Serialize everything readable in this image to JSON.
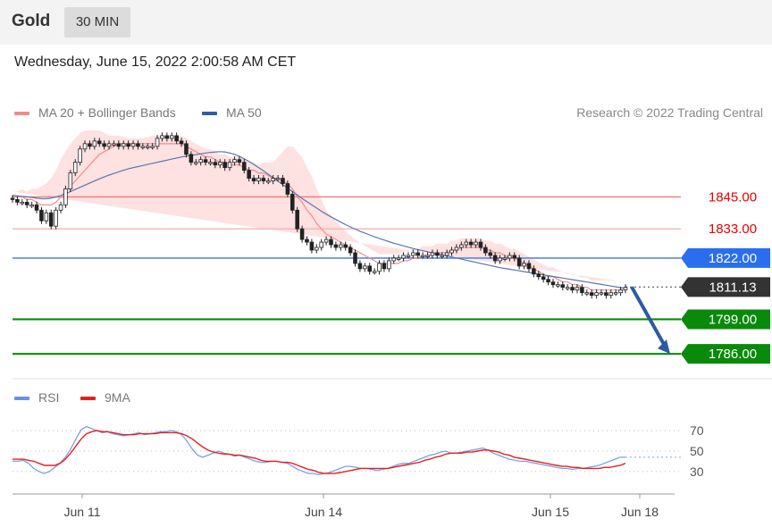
{
  "header": {
    "asset": "Gold",
    "timeframe": "30 MIN",
    "datetime": "Wednesday, June 15, 2022 2:00:58 AM CET"
  },
  "legend": {
    "ma20": {
      "label": "MA 20 + Bollinger Bands",
      "color": "#f28b8b"
    },
    "ma50": {
      "label": "MA 50",
      "color": "#2e5e9e"
    },
    "copyright": "Research © 2022 Trading Central"
  },
  "rsi_legend": {
    "rsi": {
      "label": "RSI",
      "color": "#6c8fe0"
    },
    "ma9": {
      "label": "9MA",
      "color": "#e62020"
    }
  },
  "chart_data": [
    {
      "type": "candlestick",
      "ylim": [
        1778,
        1872
      ],
      "levels": [
        {
          "value": 1845.0,
          "label": "1845.00",
          "line_color": "#f07a7a",
          "tag_bg": "#ffffff",
          "tag_fg": "#e60000"
        },
        {
          "value": 1833.0,
          "label": "1833.00",
          "line_color": "#f5b3b3",
          "tag_bg": "#ffffff",
          "tag_fg": "#e60000"
        },
        {
          "value": 1822.0,
          "label": "1822.00",
          "line_color": "#5a86e8",
          "tag_bg": "#2a6ef0",
          "tag_fg": "#ffffff"
        },
        {
          "value": 1811.13,
          "label": "1811.13",
          "line_color": "#555555",
          "tag_bg": "#333333",
          "tag_fg": "#ffffff"
        },
        {
          "value": 1799.0,
          "label": "1799.00",
          "line_color": "#0a8a0a",
          "tag_bg": "#0a8a0a",
          "tag_fg": "#ffffff"
        },
        {
          "value": 1786.0,
          "label": "1786.00",
          "line_color": "#0a8a0a",
          "tag_bg": "#0a8a0a",
          "tag_fg": "#ffffff"
        }
      ],
      "close": [
        1844,
        1843,
        1843,
        1842,
        1842,
        1840,
        1836,
        1839,
        1834,
        1840,
        1842,
        1848,
        1854,
        1858,
        1863,
        1865,
        1864,
        1866,
        1865,
        1864,
        1865,
        1865,
        1864,
        1865,
        1864,
        1865,
        1864,
        1864,
        1864,
        1864,
        1867,
        1868,
        1867,
        1868,
        1866,
        1865,
        1861,
        1858,
        1858,
        1859,
        1858,
        1858,
        1857,
        1858,
        1856,
        1858,
        1859,
        1858,
        1855,
        1852,
        1851,
        1852,
        1851,
        1851,
        1852,
        1852,
        1850,
        1846,
        1840,
        1833,
        1829,
        1828,
        1825,
        1826,
        1828,
        1829,
        1827,
        1826,
        1827,
        1826,
        1824,
        1820,
        1818,
        1819,
        1817,
        1817,
        1820,
        1818,
        1821,
        1822,
        1822,
        1823,
        1823,
        1824,
        1823,
        1823,
        1823,
        1824,
        1823,
        1823,
        1824,
        1825,
        1826,
        1827,
        1828,
        1827,
        1828,
        1826,
        1824,
        1823,
        1821,
        1822,
        1822,
        1823,
        1822,
        1819,
        1820,
        1818,
        1816,
        1815,
        1814,
        1813,
        1812,
        1812,
        1811,
        1811,
        1810,
        1811,
        1809,
        1809,
        1808,
        1809,
        1809,
        1808,
        1809,
        1809,
        1810,
        1811
      ],
      "ma20": [
        1845,
        1845,
        1845,
        1844,
        1844,
        1843,
        1842,
        1842,
        1842,
        1843,
        1845,
        1847,
        1849,
        1851,
        1853,
        1855,
        1857,
        1859,
        1861,
        1862,
        1863,
        1864,
        1865,
        1865,
        1865,
        1865,
        1865,
        1865,
        1865,
        1865,
        1865,
        1865,
        1865,
        1865,
        1865,
        1865,
        1864,
        1863,
        1862,
        1861,
        1860,
        1860,
        1859,
        1858,
        1858,
        1857,
        1857,
        1857,
        1856,
        1855,
        1855,
        1854,
        1854,
        1853,
        1852,
        1852,
        1851,
        1850,
        1848,
        1845,
        1843,
        1840,
        1838,
        1835,
        1833,
        1831,
        1830,
        1829,
        1828,
        1827,
        1826,
        1825,
        1824,
        1823,
        1822,
        1821,
        1820,
        1820,
        1820,
        1820,
        1820,
        1821,
        1821,
        1822,
        1822,
        1823,
        1823,
        1823,
        1824,
        1824,
        1824,
        1825,
        1825,
        1826,
        1826,
        1826,
        1826,
        1826,
        1825,
        1825,
        1824,
        1824,
        1823,
        1822,
        1822,
        1821,
        1820,
        1819,
        1818,
        1817,
        1816,
        1815,
        1815,
        1814,
        1813,
        1813,
        1812,
        1812,
        1811,
        1811,
        1810,
        1810,
        1810,
        1810,
        1810,
        1810,
        1810,
        1810
      ],
      "ma50": [
        1845.5,
        1845.4,
        1845.2,
        1845,
        1844.8,
        1844.5,
        1844.3,
        1844.3,
        1844.5,
        1845,
        1845.5,
        1846.2,
        1847,
        1847.8,
        1848.6,
        1849.4,
        1850.2,
        1851,
        1851.8,
        1852.5,
        1853.2,
        1853.8,
        1854.4,
        1855,
        1855.5,
        1856,
        1856.4,
        1856.8,
        1857.2,
        1857.6,
        1858,
        1858.4,
        1858.8,
        1859.2,
        1859.6,
        1860,
        1860.3,
        1860.6,
        1860.9,
        1861.2,
        1861.5,
        1861.7,
        1861.9,
        1862,
        1861.9,
        1861.5,
        1861,
        1860.2,
        1859.3,
        1858.3,
        1857.2,
        1856,
        1854.8,
        1853.5,
        1852.2,
        1850.9,
        1849.6,
        1848.3,
        1847,
        1845.7,
        1844.4,
        1843.2,
        1842,
        1840.8,
        1839.6,
        1838.5,
        1837.5,
        1836.5,
        1835.5,
        1834.6,
        1833.7,
        1832.9,
        1832.1,
        1831.4,
        1830.7,
        1830,
        1829.4,
        1828.8,
        1828.2,
        1827.6,
        1827.1,
        1826.6,
        1826.1,
        1825.6,
        1825.2,
        1824.8,
        1824.4,
        1824,
        1823.6,
        1823.2,
        1822.8,
        1822.4,
        1822,
        1821.6,
        1821.2,
        1820.8,
        1820.4,
        1820,
        1819.6,
        1819.2,
        1818.8,
        1818.4,
        1818.1,
        1817.8,
        1817.5,
        1817.2,
        1816.9,
        1816.6,
        1816.3,
        1816,
        1815.7,
        1815.4,
        1815.1,
        1814.8,
        1814.5,
        1814.2,
        1813.9,
        1813.6,
        1813.3,
        1813,
        1812.7,
        1812.4,
        1812.1,
        1811.8,
        1811.5,
        1811.2,
        1810.9,
        1810.6
      ],
      "bb_width": [
        2,
        2,
        3,
        3,
        4,
        5,
        7,
        8,
        10,
        12,
        14,
        15,
        16,
        16,
        16,
        15,
        13,
        11,
        9,
        7,
        5,
        4,
        3,
        2.5,
        2,
        2,
        2,
        2,
        2.5,
        3,
        3,
        3,
        3,
        3,
        3,
        3,
        3,
        3,
        3,
        3,
        3,
        3,
        3,
        3,
        3,
        3,
        3,
        3,
        3,
        3,
        3,
        3,
        4,
        5,
        6,
        8,
        11,
        14,
        16,
        17,
        17,
        16,
        15,
        13,
        11,
        9,
        8,
        7,
        6,
        5,
        4.5,
        4,
        3.8,
        3.5,
        3.5,
        3.5,
        3.5,
        3.5,
        3.5,
        3.5,
        3.5,
        3.5,
        3.5,
        3.5,
        3.5,
        3.5,
        3.5,
        3.5,
        3.5,
        3.5,
        3.5,
        3.5,
        3.5,
        3.5,
        3.5,
        3.5,
        3.5,
        3.5,
        3.5,
        3.5,
        3.5,
        3.5,
        3.5,
        3.5,
        3.5,
        3.5,
        3.5,
        3.5,
        3.5,
        3.5,
        3.5,
        3.5,
        3.5,
        3.5,
        3.5,
        3.5,
        3.5,
        3.5,
        3.5,
        3.5,
        3.5,
        3.5,
        3.5,
        3.5,
        3.5,
        3.5
      ],
      "forecast_arrow": {
        "from": 1811.13,
        "to": 1786.0,
        "color": "#2c5aa0"
      },
      "x_ticks": [
        "Jun 11",
        "Jun 14",
        "Jun 15",
        "Jun 18"
      ]
    },
    {
      "type": "line",
      "ylim": [
        15,
        85
      ],
      "y_ticks": [
        70,
        50,
        30
      ],
      "rsi": [
        40,
        40,
        41,
        38,
        33,
        30,
        28,
        30,
        34,
        38,
        44,
        52,
        62,
        71,
        74,
        72,
        70,
        68,
        69,
        67,
        66,
        65,
        66,
        67,
        68,
        66,
        67,
        68,
        69,
        69,
        70,
        69,
        66,
        60,
        52,
        46,
        44,
        46,
        48,
        50,
        48,
        47,
        45,
        46,
        44,
        42,
        40,
        39,
        39,
        40,
        40,
        39,
        38,
        35,
        32,
        30,
        28,
        28,
        27,
        28,
        29,
        31,
        33,
        35,
        35,
        34,
        33,
        33,
        32,
        31,
        32,
        33,
        35,
        37,
        38,
        38,
        40,
        42,
        44,
        46,
        47,
        49,
        50,
        48,
        48,
        49,
        50,
        51,
        52,
        53,
        51,
        48,
        46,
        44,
        42,
        41,
        40,
        40,
        39,
        38,
        37,
        36,
        35,
        34,
        33,
        33,
        32,
        33,
        33,
        34,
        35,
        36,
        38,
        40,
        42,
        44,
        44
      ],
      "ma9": [
        42,
        42,
        42,
        41,
        40,
        38,
        36,
        36,
        36,
        38,
        42,
        48,
        55,
        62,
        67,
        69,
        70,
        69,
        69,
        68,
        67,
        66,
        66,
        66,
        67,
        67,
        67,
        67,
        68,
        68,
        68,
        68,
        67,
        65,
        62,
        58,
        54,
        51,
        49,
        48,
        47,
        47,
        46,
        46,
        45,
        44,
        43,
        41,
        40,
        40,
        40,
        39,
        39,
        38,
        36,
        34,
        32,
        31,
        29,
        28,
        28,
        28,
        29,
        30,
        31,
        32,
        33,
        33,
        33,
        33,
        33,
        33,
        34,
        35,
        36,
        37,
        38,
        39,
        41,
        42,
        44,
        45,
        47,
        48,
        48,
        48,
        49,
        49,
        50,
        51,
        51,
        50,
        49,
        47,
        46,
        44,
        43,
        42,
        41,
        40,
        39,
        38,
        37,
        36,
        35,
        35,
        34,
        34,
        33,
        33,
        33,
        33,
        34,
        34,
        35,
        36,
        38
      ]
    }
  ]
}
